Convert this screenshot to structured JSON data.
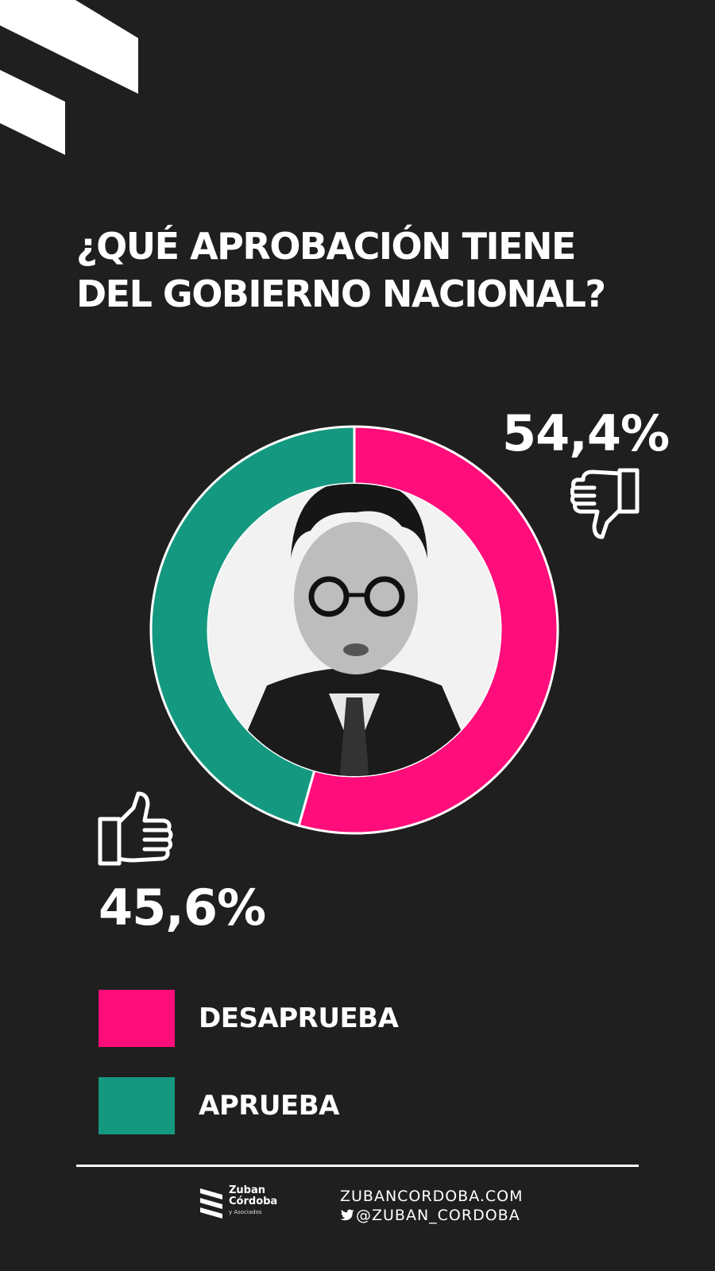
{
  "title": {
    "line1": "¿QUÉ APROBACIÓN TIENE",
    "line2": "DEL GOBIERNO NACIONAL?"
  },
  "colors": {
    "desaprueba": "#ff0d7a",
    "aprueba": "#149980",
    "background": "#1f1f1f"
  },
  "chart_data": {
    "type": "pie",
    "title": "¿QUÉ APROBACIÓN TIENE DEL GOBIERNO NACIONAL?",
    "categories": [
      "DESAPRUEBA",
      "APRUEBA"
    ],
    "values": [
      54.4,
      45.6
    ],
    "value_labels": [
      "54,4%",
      "45,6%"
    ],
    "legend_position": "bottom-left",
    "donut": true
  },
  "labels": {
    "desaprueba_pct": "54,4%",
    "aprueba_pct": "45,6%"
  },
  "legend": {
    "desaprueba": "DESAPRUEBA",
    "aprueba": "APRUEBA"
  },
  "icons": {
    "disapprove": "thumbs-down-icon",
    "approve": "thumbs-up-icon",
    "center": "portrait-icon"
  },
  "footer": {
    "brand_line1": "Zuban",
    "brand_line2": "Córdoba",
    "brand_sub": "y Asociados",
    "website": "ZUBANCORDOBA.COM",
    "twitter": "@ZUBAN_CORDOBA"
  }
}
